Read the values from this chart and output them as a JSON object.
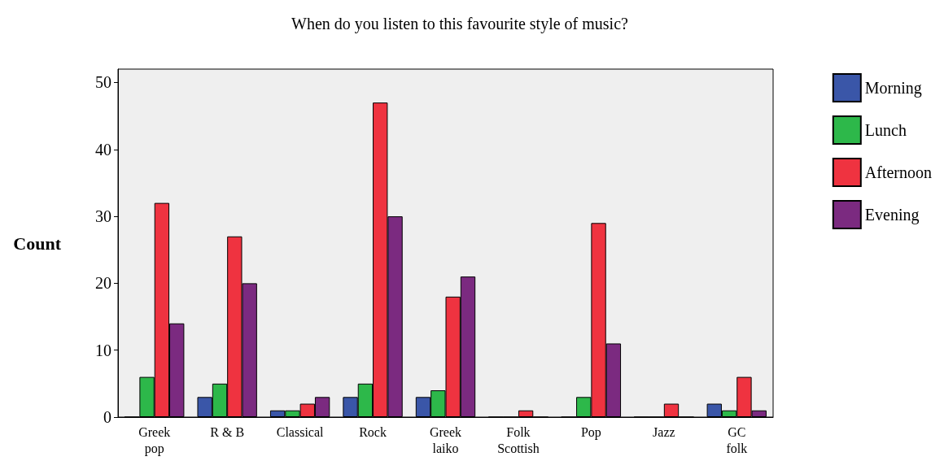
{
  "chart_data": {
    "type": "bar",
    "title": "When do you listen to this favourite style of music?",
    "ylabel": "Count",
    "categories": [
      "Greek\npop",
      "R & B",
      "Classical",
      "Rock",
      "Greek\nlaiko",
      "Folk\nScottish",
      "Pop",
      "Jazz",
      "GC\nfolk"
    ],
    "series": [
      {
        "name": "Morning",
        "color": "#3a56a8",
        "values": [
          0,
          3,
          1,
          3,
          3,
          0,
          0,
          0,
          2
        ]
      },
      {
        "name": "Lunch",
        "color": "#2db84a",
        "values": [
          6,
          5,
          1,
          5,
          4,
          0,
          3,
          0,
          1
        ]
      },
      {
        "name": "Afternoon",
        "color": "#ef3340",
        "values": [
          32,
          27,
          2,
          47,
          18,
          1,
          29,
          2,
          6
        ]
      },
      {
        "name": "Evening",
        "color": "#7b2a80",
        "values": [
          14,
          20,
          3,
          30,
          21,
          0,
          11,
          0,
          1
        ]
      }
    ],
    "ylim": [
      0,
      52
    ],
    "yticks": [
      0,
      10,
      20,
      30,
      40,
      50
    ],
    "grid": false,
    "legend": "top right"
  }
}
